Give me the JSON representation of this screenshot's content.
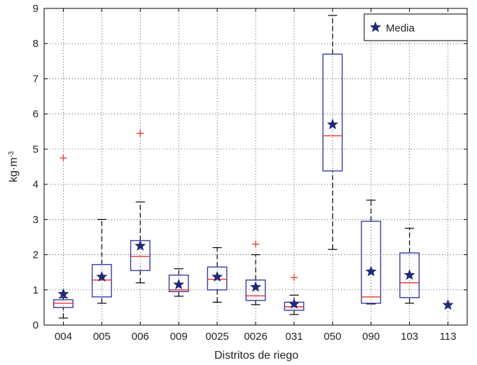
{
  "chart_data": {
    "type": "box",
    "xlabel": "Distritos de riego",
    "ylabel": "kg·m",
    "ylabel_sup": "-3",
    "ylim": [
      0,
      9
    ],
    "yticks": [
      "0",
      "1",
      "2",
      "3",
      "4",
      "5",
      "6",
      "7",
      "8",
      "9"
    ],
    "grid": true,
    "legend": {
      "position": "top-right",
      "label": "Media"
    },
    "colors": {
      "box": "#3a3aa8",
      "median": "#e8322b",
      "outlier": "#e8322b",
      "whisker": "#000000",
      "mean": "#1f2a7a"
    },
    "categories": [
      "004",
      "005",
      "006",
      "009",
      "0025",
      "0026",
      "031",
      "050",
      "090",
      "103",
      "113"
    ],
    "boxes": [
      {
        "label": "004",
        "min": 0.2,
        "q1": 0.5,
        "median": 0.62,
        "q3": 0.72,
        "max": 0.78,
        "mean": 0.88,
        "outliers": [
          4.75
        ]
      },
      {
        "label": "005",
        "min": 0.62,
        "q1": 0.8,
        "median": 1.28,
        "q3": 1.72,
        "max": 3.0,
        "mean": 1.37,
        "outliers": []
      },
      {
        "label": "006",
        "min": 1.2,
        "q1": 1.55,
        "median": 1.95,
        "q3": 2.4,
        "max": 3.5,
        "mean": 2.25,
        "outliers": [
          5.45
        ]
      },
      {
        "label": "009",
        "min": 0.82,
        "q1": 0.95,
        "median": 1.0,
        "q3": 1.42,
        "max": 1.6,
        "mean": 1.15,
        "outliers": []
      },
      {
        "label": "0025",
        "min": 0.65,
        "q1": 1.0,
        "median": 1.3,
        "q3": 1.65,
        "max": 2.2,
        "mean": 1.37,
        "outliers": []
      },
      {
        "label": "0026",
        "min": 0.58,
        "q1": 0.7,
        "median": 0.83,
        "q3": 1.28,
        "max": 2.0,
        "mean": 1.08,
        "outliers": [
          2.3
        ]
      },
      {
        "label": "031",
        "min": 0.3,
        "q1": 0.42,
        "median": 0.52,
        "q3": 0.65,
        "max": 0.85,
        "mean": 0.6,
        "outliers": [
          1.35
        ]
      },
      {
        "label": "050",
        "min": 2.15,
        "q1": 4.38,
        "median": 5.38,
        "q3": 7.7,
        "max": 8.8,
        "mean": 5.7,
        "outliers": []
      },
      {
        "label": "090",
        "min": 0.6,
        "q1": 0.62,
        "median": 0.8,
        "q3": 2.95,
        "max": 3.55,
        "mean": 1.52,
        "outliers": []
      },
      {
        "label": "103",
        "min": 0.62,
        "q1": 0.78,
        "median": 1.2,
        "q3": 2.05,
        "max": 2.75,
        "mean": 1.42,
        "outliers": []
      },
      {
        "label": "113",
        "min": null,
        "q1": null,
        "median": null,
        "q3": null,
        "max": null,
        "mean": 0.57,
        "outliers": []
      }
    ]
  }
}
